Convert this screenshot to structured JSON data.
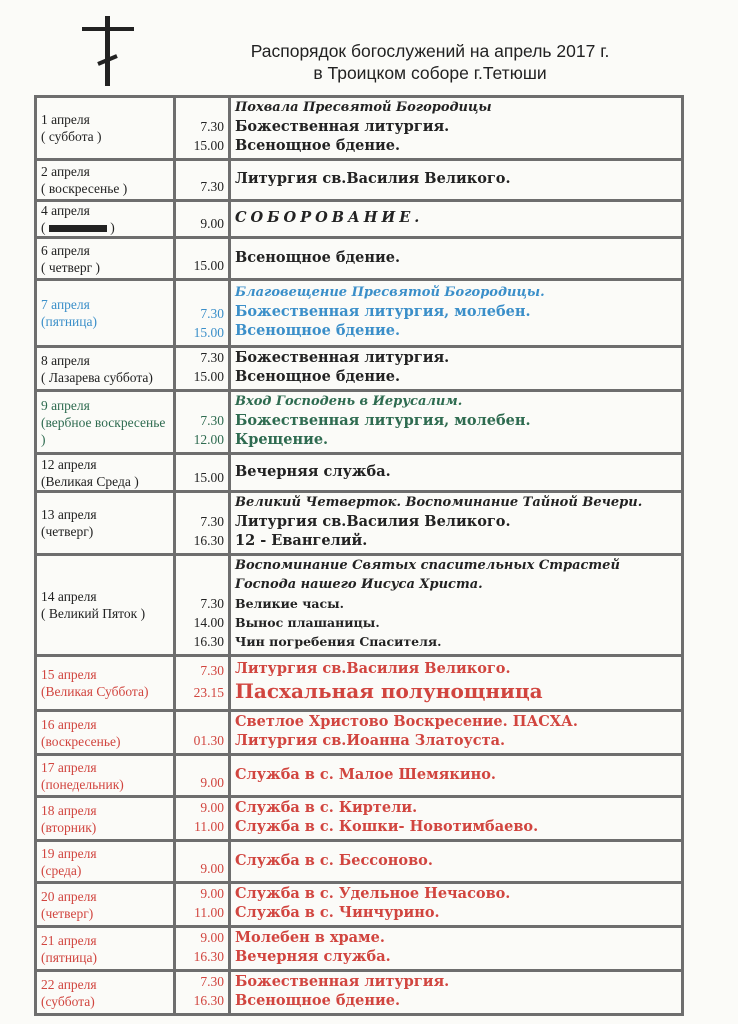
{
  "header": {
    "title_line1": "Распорядок богослужений на апрель 2017 г.",
    "title_line2": "в Троицком соборе  г.Тетюши"
  },
  "colors": {
    "black": "#222222",
    "blue": "#3b8fc9",
    "green": "#2e6b50",
    "red": "#d1453f",
    "border": "#6e6e6e"
  },
  "rows": [
    {
      "date": "1 апреля",
      "day": "( суббота )",
      "color": "black",
      "times": [
        "7.30",
        "15.00"
      ],
      "lines": [
        {
          "text": "Похвала Пресвятой Богородицы",
          "style": "it"
        },
        {
          "text": "Божественная литургия."
        },
        {
          "text": "Всенощное бдение."
        }
      ]
    },
    {
      "date": "2  апреля",
      "day": "( воскресенье )",
      "color": "black",
      "times": [
        "7.30"
      ],
      "lines": [
        {
          "text": "Литургия св.Василия Великого."
        }
      ]
    },
    {
      "date": "4  апреля",
      "day": "( ",
      "day_redacted": true,
      "day_end": " )",
      "color": "black",
      "times": [
        "9.00"
      ],
      "lines": [
        {
          "text": "СОБОРОВАНИЕ.",
          "style": "sp"
        }
      ]
    },
    {
      "date": "6 апреля",
      "day": "( четверг )",
      "color": "black",
      "times": [
        "15.00"
      ],
      "lines": [
        {
          "text": "Всенощное бдение."
        }
      ]
    },
    {
      "date": "7 апреля",
      "day": "(пятница)",
      "color": "blue",
      "times": [
        "7.30",
        "15.00"
      ],
      "lines": [
        {
          "text": "Благовещение Пресвятой Богородицы.",
          "style": "it"
        },
        {
          "text": "Божественная литургия, молебен."
        },
        {
          "text": "Всенощное бдение."
        }
      ]
    },
    {
      "date": "8 апреля",
      "day": "( Лазарева суббота)",
      "color": "black",
      "times": [
        "7.30",
        "15.00"
      ],
      "lines": [
        {
          "text": "Божественная литургия."
        },
        {
          "text": "Всенощное бдение."
        }
      ]
    },
    {
      "date": "9 апреля",
      "day": "(вербное воскресенье )",
      "color": "green",
      "times": [
        "7.30",
        "12.00"
      ],
      "lines": [
        {
          "text": "Вход Господень в Иерусалим.",
          "style": "it"
        },
        {
          "text": "Божественная литургия, молебен."
        },
        {
          "text": "Крещение."
        }
      ]
    },
    {
      "date": "12 апреля",
      "day": "(Великая Среда )",
      "color": "black",
      "times": [
        "15.00"
      ],
      "lines": [
        {
          "text": "Вечерняя служба."
        }
      ]
    },
    {
      "date": "13 апреля",
      "day": "(четверг)",
      "color": "black",
      "times": [
        "7.30",
        "16.30"
      ],
      "lines": [
        {
          "text": "Великий Четверток. Воспоминание Тайной Вечери.",
          "style": "it"
        },
        {
          "text": "Литургия св.Василия Великого."
        },
        {
          "text": " 12 - Евангелий."
        }
      ]
    },
    {
      "date": "14 апреля",
      "day": "( Великий Пяток )",
      "color": "black",
      "times": [
        "7.30",
        "14.00",
        "16.30"
      ],
      "lines": [
        {
          "text": "Воспоминание Святых спасительных Страстей",
          "style": "it"
        },
        {
          "text": "Господа нашего Иисуса Христа.",
          "style": "it"
        },
        {
          "text": "Великие часы.",
          "style": "sm"
        },
        {
          "text": "Вынос плашаницы.",
          "style": "sm"
        },
        {
          "text": "Чин погребения Спасителя.",
          "style": "sm"
        }
      ]
    },
    {
      "date": "15 апреля",
      "day": "(Великая Суббота)",
      "color": "red",
      "times": [
        "7.30",
        "23.15"
      ],
      "lines": [
        {
          "text": "Литургия св.Василия Великого."
        },
        {
          "text": "Пасхальная    полунощница",
          "style": "big"
        }
      ]
    },
    {
      "date": "16 апреля",
      "day": "(воскресенье)",
      "color": "red",
      "times": [
        "01.30"
      ],
      "lines": [
        {
          "text": "Светлое Христово Воскресение. ПАСХА."
        },
        {
          "text": "Литургия св.Иоанна Златоуста."
        }
      ]
    },
    {
      "date": "17 апреля",
      "day": "(понедельник)",
      "color": "red",
      "times": [
        "9.00"
      ],
      "lines": [
        {
          "text": "Служба в с. Малое Шемякино."
        }
      ]
    },
    {
      "date": "18 апреля",
      "day": "(вторник)",
      "color": "red",
      "times": [
        "9.00",
        "11.00"
      ],
      "lines": [
        {
          "text": "Служба в с. Киртели."
        },
        {
          "text": "Служба в с. Кошки- Новотимбаево."
        }
      ]
    },
    {
      "date": "19 апреля",
      "day": "(среда)",
      "color": "red",
      "times": [
        "9.00"
      ],
      "lines": [
        {
          "text": "Служба в с. Бессоново."
        }
      ]
    },
    {
      "date": "20 апреля",
      "day": "(четверг)",
      "color": "red",
      "times": [
        "9.00",
        "11.00"
      ],
      "lines": [
        {
          "text": "Служба в с. Удельное Нечасово."
        },
        {
          "text": "Служба в с. Чинчурино."
        }
      ]
    },
    {
      "date": "21 апреля",
      "day": "(пятница)",
      "color": "red",
      "times": [
        "9.00",
        "16.30"
      ],
      "lines": [
        {
          "text": "Молебен в храме."
        },
        {
          "text": "Вечерняя служба."
        }
      ]
    },
    {
      "date": "22 апреля",
      "day": "(суббота)",
      "color": "red",
      "times": [
        "7.30",
        "16.30"
      ],
      "lines": [
        {
          "text": "Божественная литургия."
        },
        {
          "text": "Всенощное бдение."
        }
      ]
    }
  ]
}
